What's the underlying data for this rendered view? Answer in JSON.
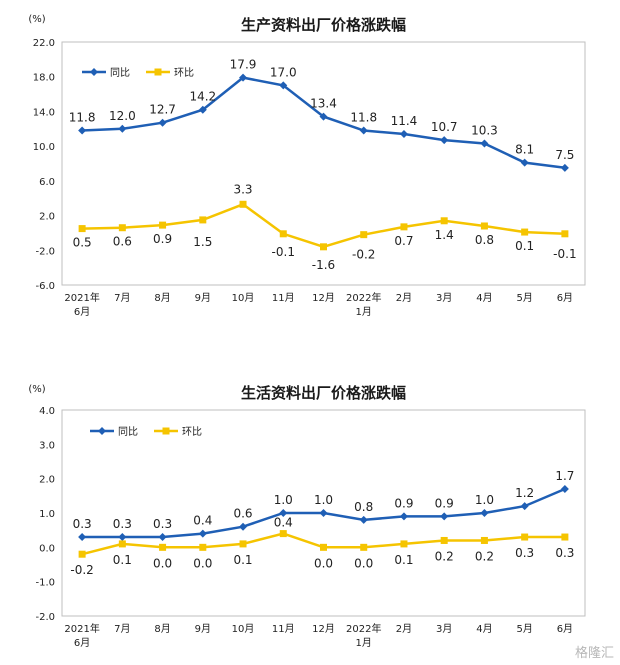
{
  "chart_data": [
    {
      "type": "line",
      "title": "生产资料出厂价格涨跌幅",
      "unit": "(%)",
      "categories": [
        [
          "2021年",
          "6月"
        ],
        [
          "7月"
        ],
        [
          "8月"
        ],
        [
          "9月"
        ],
        [
          "10月"
        ],
        [
          "11月"
        ],
        [
          "12月"
        ],
        [
          "2022年",
          "1月"
        ],
        [
          "2月"
        ],
        [
          "3月"
        ],
        [
          "4月"
        ],
        [
          "5月"
        ],
        [
          "6月"
        ]
      ],
      "ylim": [
        -6.0,
        22.0
      ],
      "yticks": [
        22.0,
        18.0,
        14.0,
        10.0,
        6.0,
        2.0,
        -2.0,
        -6.0
      ],
      "ytick_labels": [
        "22.0",
        "18.0",
        "14.0",
        "10.0",
        "6.0",
        "2.0",
        "-2.0",
        "-6.0"
      ],
      "legend_position": "top-left",
      "series": [
        {
          "name": "同比",
          "color": "#1f5fb5",
          "values": [
            11.8,
            12.0,
            12.7,
            14.2,
            17.9,
            17.0,
            13.4,
            11.8,
            11.4,
            10.7,
            10.3,
            8.1,
            7.5
          ],
          "labels": [
            "11.8",
            "12.0",
            "12.7",
            "14.2",
            "17.9",
            "17.0",
            "13.4",
            "11.8",
            "11.4",
            "10.7",
            "10.3",
            "8.1",
            "7.5"
          ]
        },
        {
          "name": "环比",
          "color": "#f5c400",
          "values": [
            0.5,
            0.6,
            0.9,
            1.5,
            3.3,
            -0.1,
            -1.6,
            -0.2,
            0.7,
            1.4,
            0.8,
            0.1,
            -0.1
          ],
          "labels": [
            "0.5",
            "0.6",
            "0.9",
            "1.5",
            "3.3",
            "-0.1",
            "-1.6",
            "-0.2",
            "0.7",
            "1.4",
            "0.8",
            "0.1",
            "-0.1"
          ]
        }
      ]
    },
    {
      "type": "line",
      "title": "生活资料出厂价格涨跌幅",
      "unit": "(%)",
      "categories": [
        [
          "2021年",
          "6月"
        ],
        [
          "7月"
        ],
        [
          "8月"
        ],
        [
          "9月"
        ],
        [
          "10月"
        ],
        [
          "11月"
        ],
        [
          "12月"
        ],
        [
          "2022年",
          "1月"
        ],
        [
          "2月"
        ],
        [
          "3月"
        ],
        [
          "4月"
        ],
        [
          "5月"
        ],
        [
          "6月"
        ]
      ],
      "ylim": [
        -2.0,
        4.0
      ],
      "yticks": [
        4.0,
        3.0,
        2.0,
        1.0,
        0.0,
        -1.0,
        -2.0
      ],
      "ytick_labels": [
        "4.0",
        "3.0",
        "2.0",
        "1.0",
        "0.0",
        "-1.0",
        "-2.0"
      ],
      "legend_position": "top-left",
      "series": [
        {
          "name": "同比",
          "color": "#1f5fb5",
          "values": [
            0.3,
            0.3,
            0.3,
            0.4,
            0.6,
            1.0,
            1.0,
            0.8,
            0.9,
            0.9,
            1.0,
            1.2,
            1.7
          ],
          "labels": [
            "0.3",
            "0.3",
            "0.3",
            "0.4",
            "0.6",
            "1.0",
            "1.0",
            "0.8",
            "0.9",
            "0.9",
            "1.0",
            "1.2",
            "1.7"
          ]
        },
        {
          "name": "环比",
          "color": "#f5c400",
          "values": [
            -0.2,
            0.1,
            0.0,
            0.0,
            0.1,
            0.4,
            0.0,
            0.0,
            0.1,
            0.2,
            0.2,
            0.3,
            0.3
          ],
          "labels": [
            "-0.2",
            "0.1",
            "0.0",
            "0.0",
            "0.1",
            "0.4",
            "0.0",
            "0.0",
            "0.1",
            "0.2",
            "0.2",
            "0.3",
            "0.3"
          ]
        }
      ]
    }
  ],
  "watermark": "格隆汇"
}
